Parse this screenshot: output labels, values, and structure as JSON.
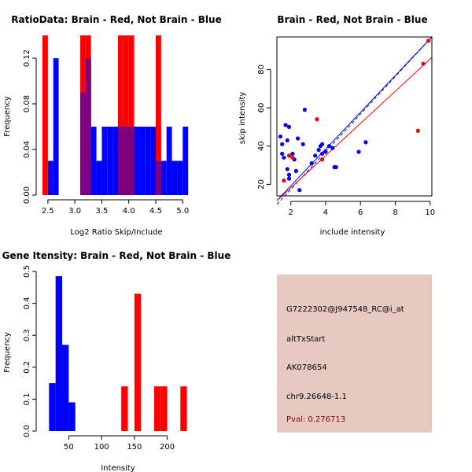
{
  "chart_data": [
    {
      "type": "histogram",
      "title": "RatioData: Brain - Red, Not Brain - Blue",
      "xlabel": "Log2 Ratio Skip/Include",
      "ylabel": "Frequency",
      "xlim": [
        2.4,
        5.2
      ],
      "ylim": [
        0,
        0.14
      ],
      "xticks": [
        "2.5",
        "3.0",
        "3.5",
        "4.0",
        "4.5",
        "5.0"
      ],
      "xtick_values": [
        2.5,
        3.0,
        3.5,
        4.0,
        4.5,
        5.0
      ],
      "yticks": [
        "0.00",
        "0.04",
        "0.08",
        "0.12"
      ],
      "ytick_values": [
        0,
        0.04,
        0.08,
        0.12
      ],
      "series": [
        {
          "name": "Brain",
          "color": "#ff0000",
          "bins": [
            [
              2.4,
              2.5,
              0.14
            ],
            [
              3.1,
              3.2,
              0.14
            ],
            [
              3.2,
              3.3,
              0.14
            ],
            [
              3.8,
              3.9,
              0.14
            ],
            [
              3.9,
              4.0,
              0.14
            ],
            [
              4.0,
              4.1,
              0.14
            ],
            [
              4.5,
              4.6,
              0.14
            ]
          ]
        },
        {
          "name": "Not Brain",
          "color": "#0000ff",
          "bins": [
            [
              2.5,
              2.6,
              0.03
            ],
            [
              2.6,
              2.7,
              0.12
            ],
            [
              3.1,
              3.2,
              0.09
            ],
            [
              3.2,
              3.3,
              0.12
            ],
            [
              3.3,
              3.4,
              0.06
            ],
            [
              3.4,
              3.5,
              0.03
            ],
            [
              3.5,
              3.6,
              0.06
            ],
            [
              3.6,
              3.7,
              0.06
            ],
            [
              3.7,
              3.8,
              0.06
            ],
            [
              3.8,
              3.9,
              0.06
            ],
            [
              3.9,
              4.0,
              0.06
            ],
            [
              4.0,
              4.1,
              0.06
            ],
            [
              4.1,
              4.2,
              0.06
            ],
            [
              4.2,
              4.3,
              0.06
            ],
            [
              4.3,
              4.4,
              0.06
            ],
            [
              4.4,
              4.5,
              0.06
            ],
            [
              4.5,
              4.6,
              0.03
            ],
            [
              4.6,
              4.7,
              0.03
            ],
            [
              4.7,
              4.8,
              0.06
            ],
            [
              4.8,
              4.9,
              0.03
            ],
            [
              4.9,
              5.0,
              0.03
            ],
            [
              5.0,
              5.1,
              0.06
            ]
          ]
        }
      ],
      "overlap_color": "#7f007f"
    },
    {
      "type": "scatter",
      "title": "Brain - Red, Not Brain - Blue",
      "xlabel": "include intensity",
      "ylabel": "skip intensity",
      "xlim": [
        1.2,
        10.1
      ],
      "ylim": [
        14,
        97
      ],
      "xticks": [
        "2",
        "4",
        "6",
        "8",
        "10"
      ],
      "xtick_values": [
        2,
        4,
        6,
        8,
        10
      ],
      "yticks": [
        "20",
        "40",
        "60",
        "80"
      ],
      "ytick_values": [
        20,
        40,
        60,
        80
      ],
      "series": [
        {
          "name": "Brain",
          "color": "#ff0000",
          "points": [
            [
              1.6,
              22
            ],
            [
              1.9,
              35
            ],
            [
              2.1,
              34
            ],
            [
              3.5,
              54
            ],
            [
              3.8,
              33
            ],
            [
              9.3,
              48
            ],
            [
              9.6,
              83
            ],
            [
              9.9,
              95
            ]
          ]
        },
        {
          "name": "Not Brain",
          "color": "#0000ff",
          "points": [
            [
              1.4,
              45
            ],
            [
              1.5,
              41
            ],
            [
              1.5,
              36
            ],
            [
              1.6,
              34
            ],
            [
              1.7,
              51
            ],
            [
              1.8,
              43
            ],
            [
              1.8,
              28
            ],
            [
              1.9,
              25
            ],
            [
              1.9,
              23
            ],
            [
              1.9,
              50
            ],
            [
              2.1,
              36
            ],
            [
              2.2,
              33
            ],
            [
              2.3,
              27
            ],
            [
              2.4,
              44
            ],
            [
              2.5,
              17
            ],
            [
              2.7,
              41
            ],
            [
              2.8,
              59
            ],
            [
              3.2,
              31
            ],
            [
              3.4,
              35
            ],
            [
              3.6,
              38
            ],
            [
              3.7,
              40
            ],
            [
              3.8,
              41
            ],
            [
              3.8,
              36
            ],
            [
              4.0,
              37
            ],
            [
              4.2,
              40
            ],
            [
              4.4,
              39
            ],
            [
              4.5,
              29
            ],
            [
              4.6,
              29
            ],
            [
              5.9,
              37
            ],
            [
              6.3,
              42
            ]
          ]
        }
      ],
      "fit_lines": [
        {
          "name": "Not Brain fit",
          "color": "#0000ff",
          "dashed": true,
          "from": [
            1.2,
            9.6
          ],
          "to": [
            10.1,
            97
          ]
        },
        {
          "name": "Not Brain fit solid",
          "color": "#0000ff",
          "dashed": false,
          "from": [
            1.2,
            11.6
          ],
          "to": [
            10.1,
            97
          ]
        },
        {
          "name": "Brain fit",
          "color": "#ff0000",
          "dashed": false,
          "from": [
            1.2,
            11.5
          ],
          "to": [
            10.1,
            86.3
          ]
        }
      ]
    },
    {
      "type": "histogram",
      "title": "Gene Itensity: Brain - Red, Not Brain - Blue",
      "xlabel": "Intensity",
      "ylabel": "Frequency",
      "xlim": [
        10,
        240
      ],
      "ylim": [
        0,
        0.5
      ],
      "xticks": [
        "50",
        "100",
        "150",
        "200"
      ],
      "xtick_values": [
        50,
        100,
        150,
        200
      ],
      "yticks": [
        "0.0",
        "0.1",
        "0.2",
        "0.3",
        "0.4",
        "0.5"
      ],
      "ytick_values": [
        0,
        0.1,
        0.2,
        0.3,
        0.4,
        0.5
      ],
      "series": [
        {
          "name": "Not Brain",
          "color": "#0000ff",
          "bins": [
            [
              20,
              30,
              0.15
            ],
            [
              30,
              40,
              0.485
            ],
            [
              40,
              50,
              0.27
            ],
            [
              50,
              60,
              0.09
            ]
          ]
        },
        {
          "name": "Brain",
          "color": "#ff0000",
          "bins": [
            [
              130,
              140,
              0.14
            ],
            [
              150,
              160,
              0.43
            ],
            [
              180,
              190,
              0.14
            ],
            [
              190,
              200,
              0.14
            ],
            [
              220,
              230,
              0.14
            ]
          ]
        }
      ]
    }
  ],
  "info_panel": {
    "probe": "G7222302@J947548_RC@i_at",
    "event": "altTxStart",
    "accession": "AK078654",
    "location": "chr9.26648-1.1",
    "pval": "Pval: 0.276713",
    "background_color": "#e6c9c1"
  }
}
